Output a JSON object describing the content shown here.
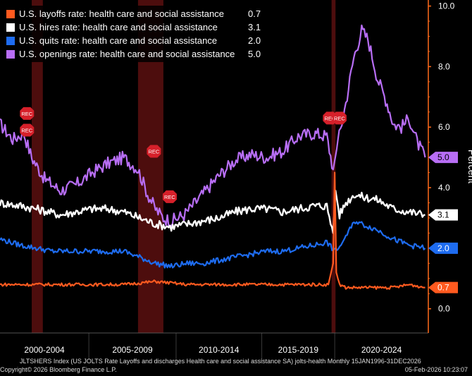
{
  "colors": {
    "layoffs": "#ff5a1f",
    "hires": "#ffffff",
    "quits": "#1e6cf0",
    "openings": "#b86ef5",
    "recession": "#5a0f0f",
    "axis": "#ff6a1a",
    "separator": "#3a3a3a"
  },
  "chart_data": {
    "type": "line",
    "title": "",
    "xlabel": "",
    "ylabel": "Percent",
    "x_range": [
      1999.2,
      2026.2
    ],
    "ylim": [
      -0.8,
      10.2
    ],
    "y_ticks": [
      "0.0",
      "2.0",
      "4.0",
      "6.0",
      "8.0",
      "10.0"
    ],
    "y_tick_values": [
      0,
      2,
      4,
      6,
      8,
      10
    ],
    "x_period_labels": [
      "2000-2004",
      "2005-2009",
      "2010-2014",
      "2015-2019",
      "2020-2024"
    ],
    "x_period_bounds": [
      [
        1999.2,
        2004.8
      ],
      [
        2004.8,
        2010.3
      ],
      [
        2010.3,
        2015.7
      ],
      [
        2015.7,
        2020.3
      ],
      [
        2020.3,
        2026.2
      ]
    ],
    "recessions": [
      [
        2001.2,
        2001.9
      ],
      [
        2007.9,
        2009.5
      ],
      [
        2020.1,
        2020.35
      ]
    ],
    "rec_markers": [
      {
        "label": "REC",
        "x": 2000.9,
        "y": 6.45
      },
      {
        "label": "REC",
        "x": 2000.9,
        "y": 5.9
      },
      {
        "label": "REC",
        "x": 2008.9,
        "y": 5.2
      },
      {
        "label": "REC",
        "x": 2009.9,
        "y": 3.7
      },
      {
        "label": "REC",
        "x": 2020.0,
        "y": 6.3
      },
      {
        "label": "REC",
        "x": 2020.6,
        "y": 6.3
      }
    ],
    "series": [
      {
        "name": "U.S. openings rate: health care and social assistance",
        "key": "openings",
        "points": [
          [
            1999.2,
            6.1
          ],
          [
            2000.0,
            5.6
          ],
          [
            2000.7,
            5.8
          ],
          [
            2001.2,
            5.0
          ],
          [
            2002.0,
            4.3
          ],
          [
            2003.0,
            3.9
          ],
          [
            2004.0,
            4.1
          ],
          [
            2005.0,
            4.5
          ],
          [
            2006.0,
            4.8
          ],
          [
            2007.0,
            5.0
          ],
          [
            2007.9,
            4.6
          ],
          [
            2008.5,
            3.8
          ],
          [
            2009.0,
            3.3
          ],
          [
            2009.5,
            3.0
          ],
          [
            2010.0,
            2.9
          ],
          [
            2010.8,
            3.1
          ],
          [
            2011.5,
            3.5
          ],
          [
            2012.0,
            3.8
          ],
          [
            2012.5,
            4.1
          ],
          [
            2013.0,
            4.4
          ],
          [
            2014.0,
            4.9
          ],
          [
            2015.0,
            5.1
          ],
          [
            2016.0,
            5.0
          ],
          [
            2017.0,
            5.2
          ],
          [
            2018.0,
            5.7
          ],
          [
            2019.0,
            5.8
          ],
          [
            2019.8,
            5.7
          ],
          [
            2020.2,
            4.6
          ],
          [
            2020.5,
            5.5
          ],
          [
            2021.0,
            6.8
          ],
          [
            2021.5,
            8.3
          ],
          [
            2022.0,
            9.2
          ],
          [
            2022.4,
            8.9
          ],
          [
            2023.0,
            7.6
          ],
          [
            2023.6,
            6.8
          ],
          [
            2024.0,
            6.1
          ],
          [
            2024.5,
            6.0
          ],
          [
            2025.0,
            6.3
          ],
          [
            2025.5,
            5.5
          ],
          [
            2026.0,
            5.0
          ]
        ]
      },
      {
        "name": "U.S. hires rate: health care and social assistance",
        "key": "hires",
        "points": [
          [
            1999.2,
            3.5
          ],
          [
            2000.5,
            3.4
          ],
          [
            2001.5,
            3.3
          ],
          [
            2003.0,
            3.1
          ],
          [
            2004.0,
            3.2
          ],
          [
            2005.0,
            3.3
          ],
          [
            2006.0,
            3.3
          ],
          [
            2007.0,
            3.2
          ],
          [
            2008.0,
            3.0
          ],
          [
            2009.0,
            2.8
          ],
          [
            2010.0,
            2.7
          ],
          [
            2011.0,
            2.8
          ],
          [
            2012.0,
            2.9
          ],
          [
            2013.0,
            3.0
          ],
          [
            2014.0,
            3.2
          ],
          [
            2015.0,
            3.3
          ],
          [
            2016.0,
            3.3
          ],
          [
            2017.0,
            3.2
          ],
          [
            2018.0,
            3.3
          ],
          [
            2019.0,
            3.4
          ],
          [
            2019.8,
            3.4
          ],
          [
            2020.2,
            2.5
          ],
          [
            2020.35,
            3.9
          ],
          [
            2020.6,
            3.1
          ],
          [
            2021.0,
            3.5
          ],
          [
            2021.6,
            3.8
          ],
          [
            2022.0,
            3.7
          ],
          [
            2023.0,
            3.6
          ],
          [
            2024.0,
            3.3
          ],
          [
            2025.0,
            3.2
          ],
          [
            2026.0,
            3.1
          ]
        ]
      },
      {
        "name": "U.S. quits rate: health care and social assistance",
        "key": "quits",
        "points": [
          [
            1999.2,
            2.3
          ],
          [
            2000.5,
            2.1
          ],
          [
            2001.5,
            2.0
          ],
          [
            2002.5,
            1.9
          ],
          [
            2004.0,
            1.9
          ],
          [
            2005.0,
            1.9
          ],
          [
            2006.0,
            1.9
          ],
          [
            2007.0,
            1.9
          ],
          [
            2008.0,
            1.7
          ],
          [
            2009.0,
            1.5
          ],
          [
            2010.0,
            1.4
          ],
          [
            2011.0,
            1.5
          ],
          [
            2012.0,
            1.5
          ],
          [
            2013.0,
            1.6
          ],
          [
            2014.0,
            1.7
          ],
          [
            2015.0,
            1.8
          ],
          [
            2016.0,
            1.9
          ],
          [
            2017.0,
            1.9
          ],
          [
            2018.0,
            2.0
          ],
          [
            2019.0,
            2.1
          ],
          [
            2019.8,
            2.2
          ],
          [
            2020.3,
            1.9
          ],
          [
            2020.7,
            2.1
          ],
          [
            2021.0,
            2.4
          ],
          [
            2021.6,
            2.9
          ],
          [
            2022.0,
            2.8
          ],
          [
            2023.0,
            2.6
          ],
          [
            2024.0,
            2.3
          ],
          [
            2025.0,
            2.1
          ],
          [
            2026.0,
            2.0
          ]
        ]
      },
      {
        "name": "U.S. layoffs rate: health care and social assistance",
        "key": "layoffs",
        "points": [
          [
            1999.2,
            0.8
          ],
          [
            2001.0,
            0.8
          ],
          [
            2003.0,
            0.8
          ],
          [
            2005.0,
            0.8
          ],
          [
            2007.0,
            0.8
          ],
          [
            2009.0,
            0.9
          ],
          [
            2011.0,
            0.8
          ],
          [
            2013.0,
            0.8
          ],
          [
            2015.0,
            0.8
          ],
          [
            2017.0,
            0.8
          ],
          [
            2019.0,
            0.8
          ],
          [
            2019.9,
            0.8
          ],
          [
            2020.2,
            1.5
          ],
          [
            2020.3,
            4.5
          ],
          [
            2020.4,
            1.2
          ],
          [
            2020.6,
            0.8
          ],
          [
            2021.0,
            0.7
          ],
          [
            2022.0,
            0.7
          ],
          [
            2023.0,
            0.7
          ],
          [
            2024.0,
            0.7
          ],
          [
            2025.0,
            0.8
          ],
          [
            2026.0,
            0.7
          ]
        ]
      }
    ],
    "end_labels": [
      {
        "key": "openings",
        "text": "5.0",
        "value": 5.0
      },
      {
        "key": "hires",
        "text": "3.1",
        "value": 3.1
      },
      {
        "key": "quits",
        "text": "2.0",
        "value": 2.0
      },
      {
        "key": "layoffs",
        "text": "0.7",
        "value": 0.7
      }
    ]
  },
  "legend": [
    {
      "key": "layoffs",
      "label": "U.S. layoffs rate: health care and social assistance",
      "value": "0.7"
    },
    {
      "key": "hires",
      "label": "U.S. hires rate: health care and social assistance",
      "value": "3.1"
    },
    {
      "key": "quits",
      "label": "U.S. quits rate: health care and social assistance",
      "value": "2.0"
    },
    {
      "key": "openings",
      "label": "U.S. openings rate: health care and social assistance",
      "value": "5.0"
    }
  ],
  "footer": {
    "line1": "JLTSHERS Index (US JOLTS Rate Layoffs and discharges Health care and social assistance SA) jolts-health Monthly 15JAN1996-31DEC2026",
    "copyright": "Copyright© 2026 Bloomberg Finance L.P.",
    "timestamp": "05-Feb-2026 10:23:07"
  }
}
